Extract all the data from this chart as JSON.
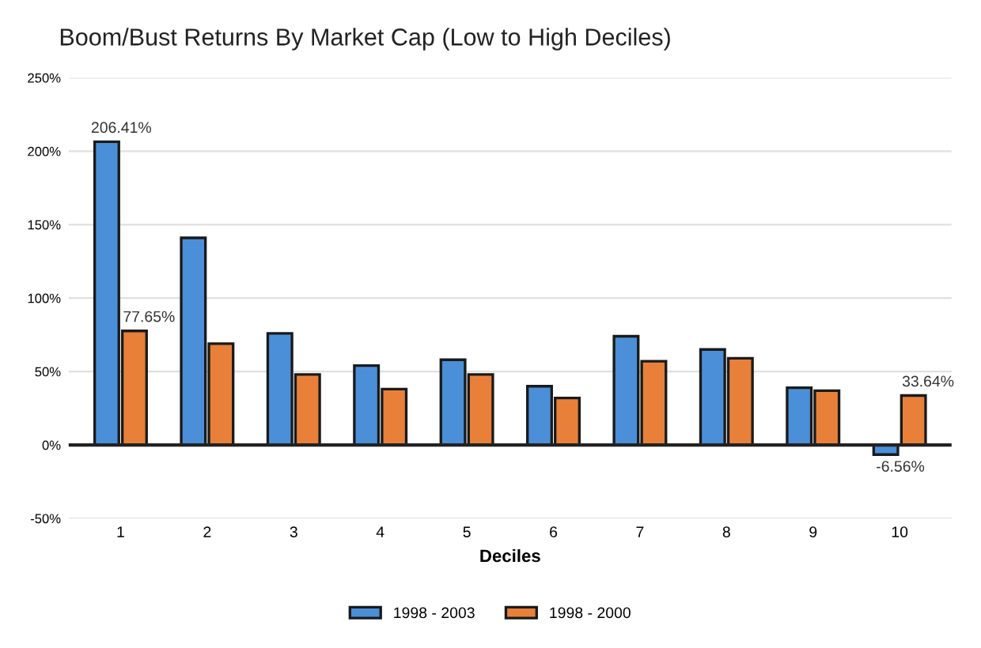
{
  "chart_data": {
    "type": "bar",
    "title": "Boom/Bust Returns By Market Cap (Low to High Deciles)",
    "xlabel": "Deciles",
    "categories": [
      "1",
      "2",
      "3",
      "4",
      "5",
      "6",
      "7",
      "8",
      "9",
      "10"
    ],
    "series": [
      {
        "name": "1998 - 2003",
        "color": "#4a8fd8",
        "values": [
          206.41,
          141,
          76,
          54,
          58,
          40,
          74,
          65,
          39,
          -6.56
        ],
        "value_labels": [
          "206.41%",
          null,
          null,
          null,
          null,
          null,
          null,
          null,
          null,
          "-6.56%"
        ]
      },
      {
        "name": "1998 - 2000",
        "color": "#e8803a",
        "values": [
          77.65,
          69,
          48,
          38,
          48,
          32,
          57,
          59,
          37,
          33.64
        ],
        "value_labels": [
          "77.65%",
          null,
          null,
          null,
          null,
          null,
          null,
          null,
          null,
          "33.64%"
        ]
      }
    ],
    "ylim": [
      -50,
      250
    ],
    "yticks": [
      {
        "value": -50,
        "label": "-50%"
      },
      {
        "value": 0,
        "label": "0%"
      },
      {
        "value": 50,
        "label": "50%"
      },
      {
        "value": 100,
        "label": "100%"
      },
      {
        "value": 150,
        "label": "150%"
      },
      {
        "value": 200,
        "label": "200%"
      },
      {
        "value": 250,
        "label": "250%"
      }
    ],
    "grid": "y",
    "legend": "bottom"
  }
}
